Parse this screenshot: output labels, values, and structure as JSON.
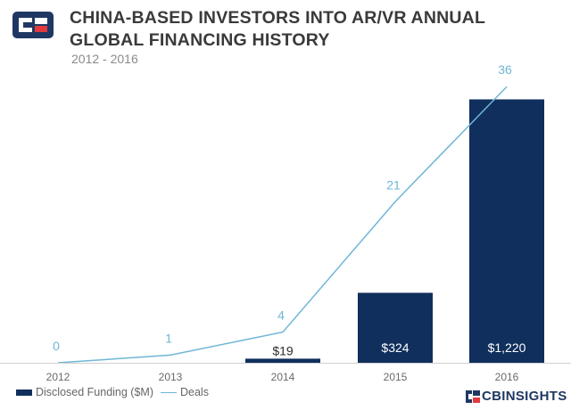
{
  "header": {
    "title": "CHINA-BASED INVESTORS INTO AR/VR ANNUAL GLOBAL FINANCING HISTORY",
    "subtitle": "2012 - 2016"
  },
  "colors": {
    "bar": "#102f5c",
    "line": "#6fb6d6",
    "bar_label": "#ffffff",
    "dark_label": "#2b2b2b",
    "line_label": "#6fb6d6",
    "axis_text": "#6a6a6a",
    "axis_line": "#cfcfcf",
    "title": "#3a3a3a",
    "brand": "#1f3863"
  },
  "chart_data": {
    "type": "bar",
    "title": "CHINA-BASED INVESTORS INTO AR/VR ANNUAL GLOBAL FINANCING HISTORY",
    "subtitle": "2012 - 2016",
    "categories": [
      "2012",
      "2013",
      "2014",
      "2015",
      "2016"
    ],
    "series": [
      {
        "name": "Disclosed Funding ($M)",
        "type": "bar",
        "values": [
          0,
          0,
          19,
          324,
          1220
        ],
        "labels": [
          "",
          "",
          "$19",
          "$324",
          "$1,220"
        ]
      },
      {
        "name": "Deals",
        "type": "line",
        "values": [
          0,
          1,
          4,
          21,
          36
        ],
        "labels": [
          "0",
          "1",
          "4",
          "21",
          "36"
        ]
      }
    ],
    "bar_axis_range": [
      0,
      1350
    ],
    "line_axis_range": [
      0,
      38
    ],
    "grid": false,
    "legend": "bottom-left"
  },
  "legend": {
    "items": [
      {
        "label": "Disclosed Funding ($M)"
      },
      {
        "label": "Deals"
      }
    ]
  },
  "brand": {
    "name": "CBINSIGHTS"
  }
}
